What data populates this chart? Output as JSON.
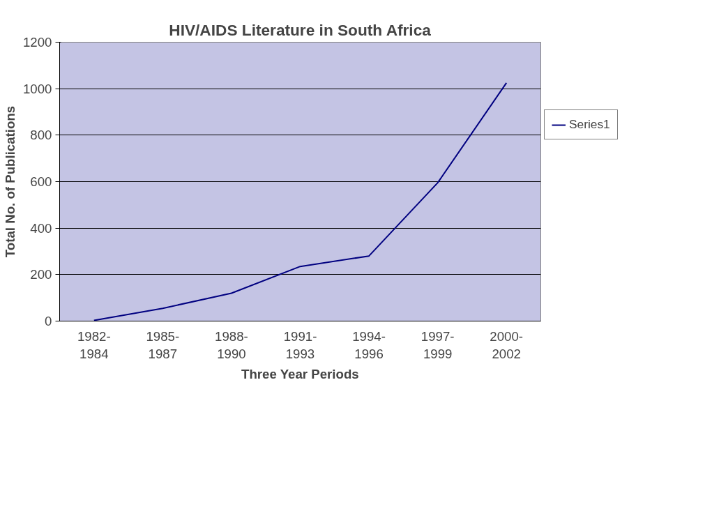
{
  "chart_data": {
    "type": "line",
    "title": "HIV/AIDS Literature in South Africa",
    "xlabel": "Three Year Periods",
    "ylabel": "Total No. of Publications",
    "categories": [
      "1982-1984",
      "1985-1987",
      "1988-1990",
      "1991-1993",
      "1994-1996",
      "1997-1999",
      "2000-2002"
    ],
    "series": [
      {
        "name": "Series1",
        "color": "#000080",
        "values": [
          3,
          55,
          120,
          235,
          280,
          595,
          1025
        ]
      }
    ],
    "ylim": [
      0,
      1200
    ],
    "yticks": [
      0,
      200,
      400,
      600,
      800,
      1000,
      1200
    ],
    "grid": "y",
    "legend": "right",
    "marker": "none",
    "line_style": "solid"
  }
}
